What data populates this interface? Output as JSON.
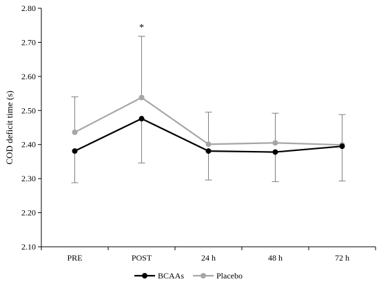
{
  "chart_data": {
    "type": "line",
    "xlabel": "",
    "ylabel": "COD deficit time (s)",
    "categories": [
      "PRE",
      "POST",
      "24 h",
      "48 h",
      "72 h"
    ],
    "ylim": [
      2.1,
      2.8
    ],
    "yticks": [
      "2.10",
      "2.20",
      "2.30",
      "2.40",
      "2.50",
      "2.60",
      "2.70",
      "2.80"
    ],
    "grid": false,
    "legend_position": "bottom",
    "series": [
      {
        "name": "BCAAs",
        "color": "#000000",
        "values": [
          2.381,
          2.476,
          2.381,
          2.378,
          2.395
        ],
        "error_lower": [
          2.288,
          2.346,
          2.296,
          2.291,
          2.293
        ],
        "error_bar_direction": "down"
      },
      {
        "name": "Placebo",
        "color": "#a6a6a6",
        "values": [
          2.436,
          2.538,
          2.401,
          2.405,
          2.399
        ],
        "error_upper": [
          2.54,
          2.718,
          2.495,
          2.492,
          2.488
        ],
        "error_bar_direction": "up"
      }
    ],
    "annotations": [
      {
        "text": "*",
        "category": "POST",
        "y": 2.745
      }
    ]
  }
}
